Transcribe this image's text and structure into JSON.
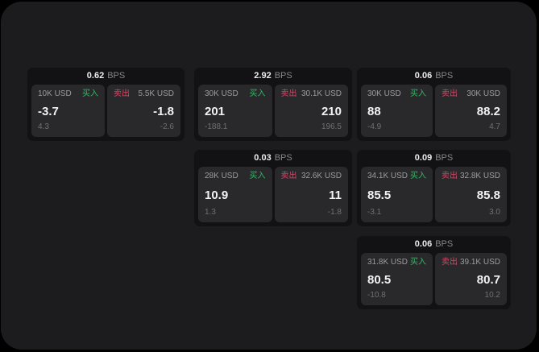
{
  "labels": {
    "bps": "BPS",
    "buy": "买入",
    "sell": "卖出"
  },
  "colors": {
    "panel_bg": "#1c1c1e",
    "card_bg": "#121214",
    "tile_bg": "#29292b",
    "buy_green": "#34b764",
    "sell_red": "#d24a68"
  },
  "cards": [
    {
      "bps": "0.62",
      "buy": {
        "amount": "10K USD",
        "price": "-3.7",
        "delta": "4.3"
      },
      "sell": {
        "amount": "5.5K USD",
        "price": "-1.8",
        "delta": "-2.6"
      }
    },
    {
      "bps": "2.92",
      "buy": {
        "amount": "30K USD",
        "price": "201",
        "delta": "-188.1"
      },
      "sell": {
        "amount": "30.1K USD",
        "price": "210",
        "delta": "196.5"
      }
    },
    {
      "bps": "0.06",
      "buy": {
        "amount": "30K USD",
        "price": "88",
        "delta": "-4.9"
      },
      "sell": {
        "amount": "30K USD",
        "price": "88.2",
        "delta": "4.7"
      }
    },
    {
      "bps": "0.03",
      "buy": {
        "amount": "28K USD",
        "price": "10.9",
        "delta": "1.3"
      },
      "sell": {
        "amount": "32.6K USD",
        "price": "11",
        "delta": "-1.8"
      }
    },
    {
      "bps": "0.09",
      "buy": {
        "amount": "34.1K USD",
        "price": "85.5",
        "delta": "-3.1"
      },
      "sell": {
        "amount": "32.8K USD",
        "price": "85.8",
        "delta": "3.0"
      }
    },
    {
      "bps": "0.06",
      "buy": {
        "amount": "31.8K USD",
        "price": "80.5",
        "delta": "-10.8"
      },
      "sell": {
        "amount": "39.1K USD",
        "price": "80.7",
        "delta": "10.2"
      }
    }
  ]
}
